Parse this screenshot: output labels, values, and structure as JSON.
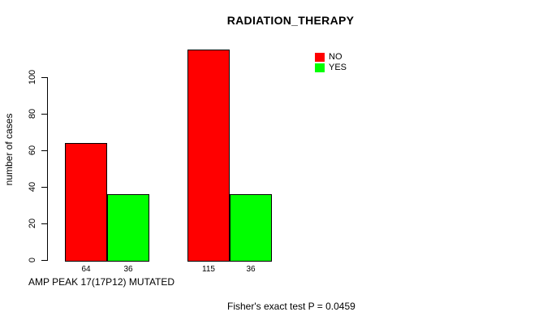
{
  "chart_data": {
    "type": "bar",
    "title": "RADIATION_THERAPY",
    "ylabel": "number of cases",
    "xlabel": "AMP PEAK 17(17P12) MUTATED",
    "annotation": "Fisher's exact test P = 0.0459",
    "categories": [
      "",
      ""
    ],
    "series": [
      {
        "name": "NO",
        "color": "#FF0000",
        "values": [
          64,
          115
        ]
      },
      {
        "name": "YES",
        "color": "#00FF00",
        "values": [
          36,
          36
        ]
      }
    ],
    "bar_value_labels": [
      [
        "64",
        "115"
      ],
      [
        "36",
        "36"
      ]
    ],
    "yticks": [
      0,
      20,
      40,
      60,
      80,
      100
    ],
    "ylim": [
      0,
      115
    ],
    "grid": false,
    "legend": {
      "position": "top-right",
      "entries": [
        {
          "label": "NO",
          "color": "#FF0000"
        },
        {
          "label": "YES",
          "color": "#00FF00"
        }
      ]
    }
  }
}
